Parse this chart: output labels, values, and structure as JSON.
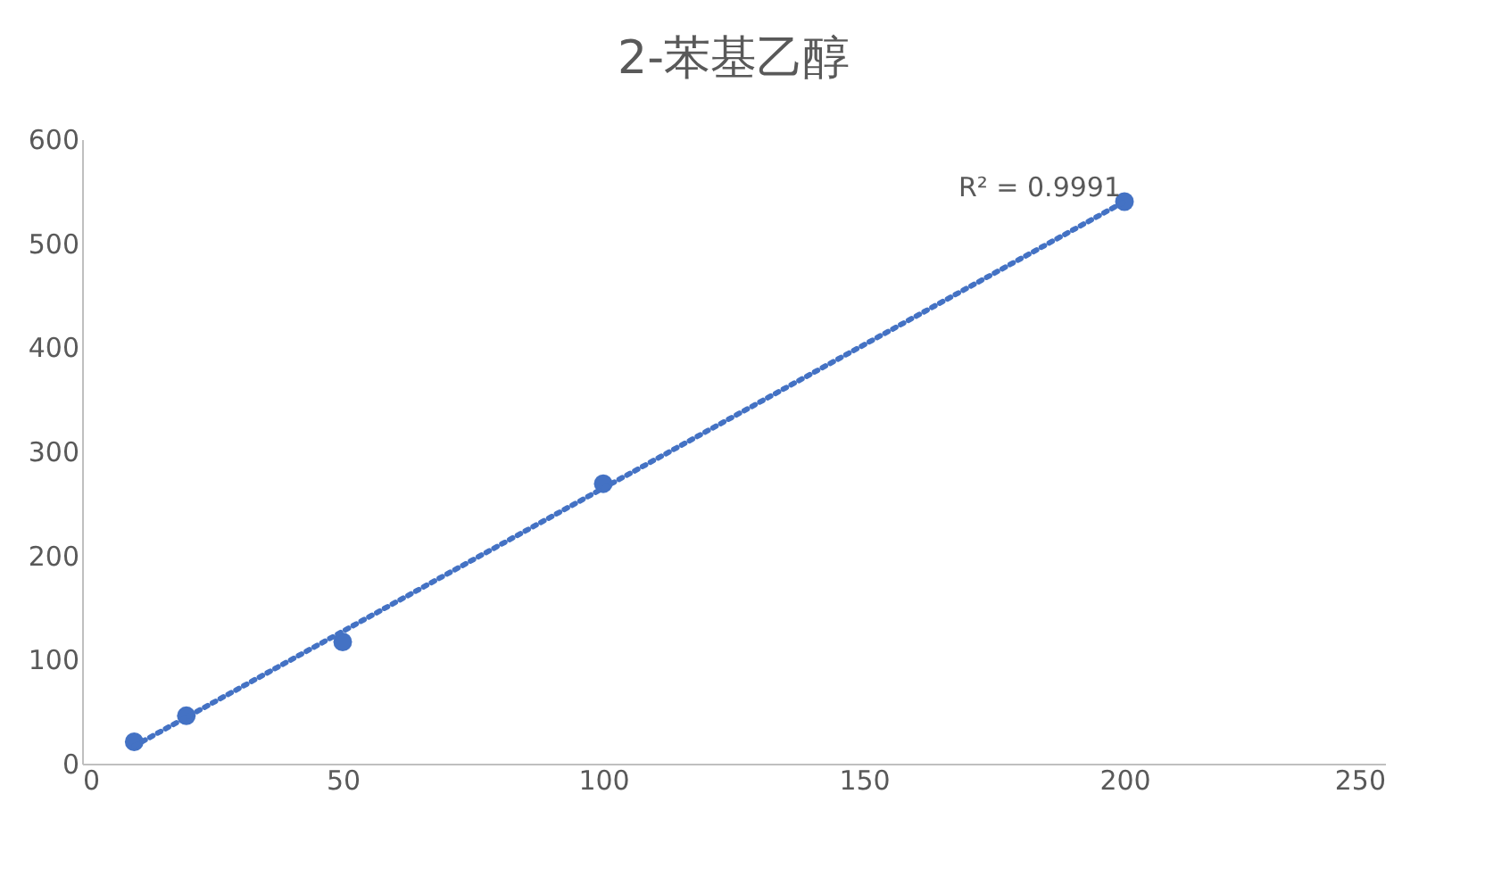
{
  "chart_data": {
    "type": "scatter",
    "title": "2-苯基乙醇",
    "x": [
      10,
      20,
      50,
      100,
      200
    ],
    "series": [
      {
        "color": "#4472c4",
        "values": [
          21,
          46,
          117,
          269,
          540
        ],
        "marker": "circle"
      },
      {
        "type": "line",
        "color": "#4472c4",
        "x": [
          10,
          200
        ],
        "values": [
          17,
          540
        ],
        "line_style": "dotted"
      }
    ],
    "xlim": [
      0,
      250
    ],
    "xticks": [
      0,
      50,
      100,
      150,
      200,
      250
    ],
    "ylim": [
      0,
      600
    ],
    "yticks": [
      0,
      100,
      200,
      300,
      400,
      500,
      600
    ],
    "grid": false,
    "annotations": [
      "R² = 0.9991"
    ]
  }
}
